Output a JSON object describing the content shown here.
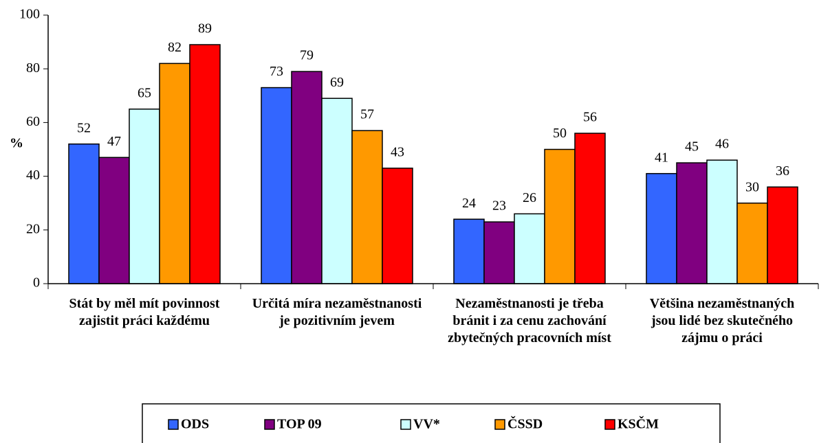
{
  "chart_data": {
    "type": "bar",
    "y_label": "%",
    "categories": [
      "Stát by měl mít povinnost zajistit práci každému",
      "Určitá míra nezaměstnanosti je pozitivním jevem",
      "Nezaměstnanosti je třeba bránit i za cenu zachování zbytečných pracovních míst",
      "Většina nezaměstnaných jsou lidé bez skutečného zájmu o práci"
    ],
    "series": [
      {
        "name": "ODS",
        "color": "#3366ff",
        "values": [
          52,
          73,
          24,
          41
        ]
      },
      {
        "name": "TOP 09",
        "color": "#800080",
        "values": [
          47,
          79,
          23,
          45
        ]
      },
      {
        "name": "VV*",
        "color": "#ccffff",
        "values": [
          65,
          69,
          26,
          46
        ]
      },
      {
        "name": "ČSSD",
        "color": "#ff9900",
        "values": [
          82,
          57,
          50,
          30
        ]
      },
      {
        "name": "KSČM",
        "color": "#ff0000",
        "values": [
          89,
          43,
          56,
          36
        ]
      }
    ],
    "ylim": [
      0,
      100
    ],
    "yticks": [
      0,
      20,
      40,
      60,
      80,
      100
    ],
    "legend": "bottom"
  }
}
